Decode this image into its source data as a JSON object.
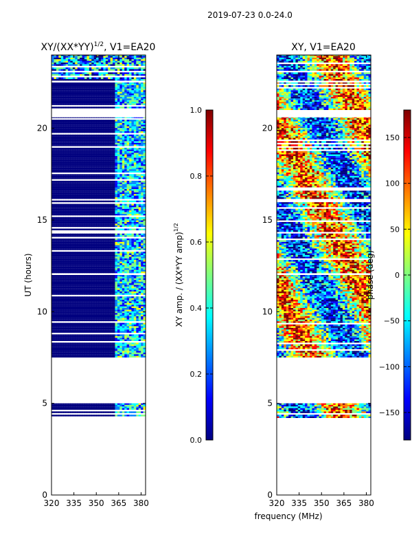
{
  "suptitle": "2019-07-23 0.0-24.0",
  "colors": {
    "jet": [
      "#00007f",
      "#0000ff",
      "#007fff",
      "#00ffff",
      "#7fff7f",
      "#ffff00",
      "#ff7f00",
      "#ff0000",
      "#7f0000"
    ],
    "frame": "#000000"
  },
  "chart_data": [
    {
      "type": "heatmap",
      "title": "XY/(XX*YY)",
      "title_sup": "1/2",
      "title_suffix": ", V1=EA20",
      "xlabel": "",
      "ylabel": "UT (hours)",
      "xlim": [
        320,
        383
      ],
      "ylim": [
        0,
        24
      ],
      "xticks": [
        320,
        335,
        350,
        365,
        380
      ],
      "yticks": [
        0,
        5,
        10,
        15,
        20
      ],
      "data_rows_ut": [
        [
          4.2,
          5.0
        ],
        [
          7.5,
          12.0
        ],
        [
          12.1,
          20.6
        ],
        [
          21.0,
          22.5
        ],
        [
          22.6,
          24.0
        ]
      ],
      "colorbar": {
        "label": "XY amp. / (XX*YY amp)",
        "label_sup": "1/2",
        "range": [
          0.0,
          1.0
        ],
        "ticks": [
          "0.0",
          "0.2",
          "0.4",
          "0.6",
          "0.8",
          "1.0"
        ]
      }
    },
    {
      "type": "heatmap",
      "title": "XY, V1=EA20",
      "xlabel": "frequency (MHz)",
      "ylabel": "",
      "xlim": [
        320,
        383
      ],
      "ylim": [
        0,
        24
      ],
      "xticks": [
        320,
        335,
        350,
        365,
        380
      ],
      "yticks": [
        0,
        5,
        10,
        15,
        20
      ],
      "data_rows_ut": [
        [
          4.2,
          5.0
        ],
        [
          7.5,
          12.0
        ],
        [
          12.1,
          20.6
        ],
        [
          21.0,
          22.5
        ],
        [
          22.6,
          24.0
        ]
      ],
      "colorbar": {
        "label": "phase (deg)",
        "range": [
          -180,
          180
        ],
        "ticks": [
          "−150",
          "−100",
          "−50",
          "0",
          "50",
          "100",
          "150"
        ]
      }
    }
  ]
}
